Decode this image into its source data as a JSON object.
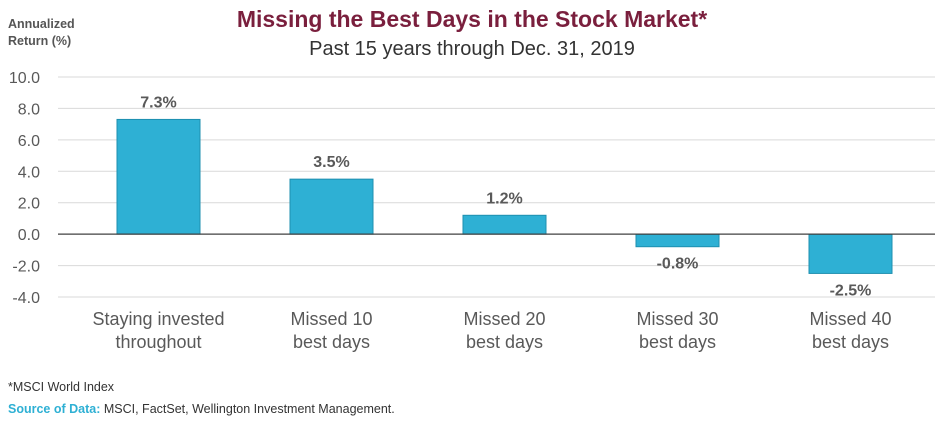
{
  "chart_data": {
    "type": "bar",
    "title": "Missing the Best Days in the Stock Market*",
    "subtitle": "Past 15 years through Dec. 31, 2019",
    "ylabel": [
      "Annualized",
      "Return (%)"
    ],
    "xlabel": "",
    "ylim": [
      -4.0,
      10.0
    ],
    "yticks": [
      "10.0",
      "8.0",
      "6.0",
      "4.0",
      "2.0",
      "0.0",
      "-2.0",
      "-4.0"
    ],
    "ytick_values": [
      10,
      8,
      6,
      4,
      2,
      0,
      -2,
      -4
    ],
    "grid": true,
    "categories": [
      [
        "Staying invested",
        "throughout"
      ],
      [
        "Missed 10",
        "best days"
      ],
      [
        "Missed 20",
        "best days"
      ],
      [
        "Missed 30",
        "best days"
      ],
      [
        "Missed 40",
        "best days"
      ]
    ],
    "values": [
      7.3,
      3.5,
      1.2,
      -0.8,
      -2.5
    ],
    "data_labels": [
      "7.3%",
      "3.5%",
      "1.2%",
      "-0.8%",
      "-2.5%"
    ],
    "colors": {
      "bar": "#2EB0D4",
      "bar_stroke": "#1E8FAF",
      "title": "#7A1F3D",
      "grid": "#D9D9D9",
      "zero_line": "#404040",
      "source_label": "#2EB0D4"
    }
  },
  "footnote": "*MSCI World Index",
  "source": {
    "label": "Source of Data:",
    "text": " MSCI, FactSet, Wellington Investment Management."
  }
}
